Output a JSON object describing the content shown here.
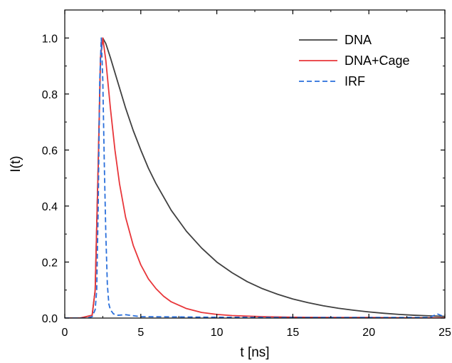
{
  "chart_data": {
    "type": "line",
    "xlabel": "t [ns]",
    "ylabel": "I(t)",
    "xlim": [
      0,
      25
    ],
    "ylim": [
      0,
      1.1
    ],
    "x_ticks": [
      0,
      5,
      10,
      15,
      20,
      25
    ],
    "x_tick_labels": [
      "0",
      "5",
      "10",
      "15",
      "20",
      "25"
    ],
    "y_ticks": [
      0.0,
      0.2,
      0.4,
      0.6,
      0.8,
      1.0
    ],
    "y_tick_labels": [
      "0.0",
      "0.2",
      "0.4",
      "0.6",
      "0.8",
      "1.0"
    ],
    "grid": false,
    "legend_position": "top-right",
    "series": [
      {
        "name": "DNA",
        "color": "#404040",
        "style": "solid",
        "x": [
          0,
          1.0,
          1.8,
          2.0,
          2.2,
          2.35,
          2.5,
          2.7,
          3.0,
          3.5,
          4.0,
          4.5,
          5.0,
          5.5,
          6.0,
          7.0,
          8.0,
          9.0,
          10.0,
          11.0,
          12.0,
          13.0,
          14.0,
          15.0,
          16.0,
          17.0,
          18.0,
          19.0,
          20.0,
          21.0,
          22.0,
          23.0,
          24.0,
          25.0
        ],
        "y": [
          0.0,
          0.0,
          0.01,
          0.1,
          0.55,
          0.93,
          1.0,
          0.98,
          0.93,
          0.84,
          0.75,
          0.67,
          0.6,
          0.535,
          0.48,
          0.385,
          0.31,
          0.25,
          0.2,
          0.162,
          0.13,
          0.105,
          0.085,
          0.068,
          0.055,
          0.044,
          0.035,
          0.028,
          0.022,
          0.017,
          0.013,
          0.01,
          0.008,
          0.006
        ]
      },
      {
        "name": "DNA+Cage",
        "color": "#e8363a",
        "style": "solid",
        "x": [
          0,
          1.0,
          1.8,
          2.0,
          2.2,
          2.35,
          2.5,
          2.7,
          3.0,
          3.3,
          3.6,
          4.0,
          4.5,
          5.0,
          5.5,
          6.0,
          6.5,
          7.0,
          8.0,
          9.0,
          10.0,
          11.0,
          12.0,
          13.0,
          14.0,
          15.0,
          17.5,
          20.0,
          22.5,
          25.0
        ],
        "y": [
          0.0,
          0.0,
          0.01,
          0.1,
          0.55,
          0.93,
          1.0,
          0.92,
          0.75,
          0.6,
          0.48,
          0.36,
          0.26,
          0.19,
          0.14,
          0.105,
          0.078,
          0.058,
          0.034,
          0.02,
          0.013,
          0.009,
          0.007,
          0.005,
          0.004,
          0.003,
          0.002,
          0.002,
          0.001,
          0.001
        ]
      },
      {
        "name": "IRF",
        "color": "#2a6fdb",
        "style": "dashed",
        "x": [
          0,
          1.0,
          1.5,
          1.8,
          2.0,
          2.1,
          2.2,
          2.3,
          2.4,
          2.5,
          2.6,
          2.7,
          2.8,
          2.9,
          3.0,
          3.2,
          3.5,
          4.0,
          5.0,
          10.0,
          15.0,
          20.0,
          24.0,
          24.5,
          25.0
        ],
        "y": [
          0.0,
          0.0,
          0.0,
          0.005,
          0.03,
          0.1,
          0.4,
          0.85,
          1.0,
          0.85,
          0.55,
          0.3,
          0.12,
          0.05,
          0.03,
          0.015,
          0.01,
          0.012,
          0.005,
          0.003,
          0.002,
          0.002,
          0.002,
          0.015,
          0.004
        ]
      }
    ]
  }
}
